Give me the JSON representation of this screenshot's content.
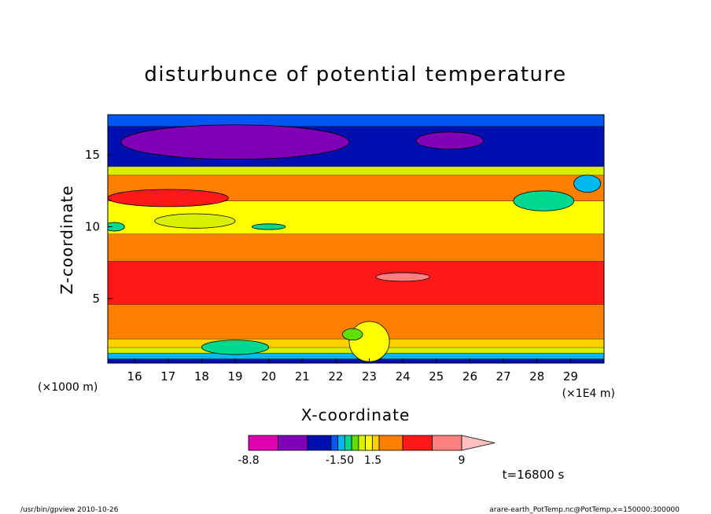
{
  "chart_data": {
    "type": "heatmap",
    "title": "disturbunce of potential temperature",
    "xlabel": "X-coordinate",
    "ylabel": "Z-coordinate",
    "x_unit_left": "(×1000 m)",
    "x_unit_right": "(×1E4 m)",
    "xlim": [
      15.2,
      30.0
    ],
    "ylim": [
      0.5,
      17.8
    ],
    "x_ticks": [
      16,
      17,
      18,
      19,
      20,
      21,
      22,
      23,
      24,
      25,
      26,
      27,
      28,
      29
    ],
    "y_ticks": [
      5,
      10,
      15
    ],
    "time_label": "t=16800 s",
    "colorbar": {
      "labels": [
        "-8.8",
        "-1.50",
        "1.5",
        "9"
      ],
      "colors": [
        "#e000b0",
        "#8000b8",
        "#0010b0",
        "#0058f0",
        "#00b8f0",
        "#00d890",
        "#60e000",
        "#d8f000",
        "#ffff00",
        "#ffd000",
        "#ff8000",
        "#ff1818",
        "#ff8080",
        "#ffc0c0"
      ]
    },
    "bands": [
      {
        "z": [
          0.5,
          0.8
        ],
        "color": "#0010b0"
      },
      {
        "z": [
          0.8,
          1.2
        ],
        "color": "#00b8f0"
      },
      {
        "z": [
          1.2,
          1.6
        ],
        "color": "#d8f000"
      },
      {
        "z": [
          1.6,
          2.2
        ],
        "color": "#ffd000"
      },
      {
        "z": [
          2.2,
          4.6
        ],
        "color": "#ff8000"
      },
      {
        "z": [
          4.6,
          7.6
        ],
        "color": "#ff1818"
      },
      {
        "z": [
          7.6,
          9.5
        ],
        "color": "#ff8000"
      },
      {
        "z": [
          9.5,
          11.8
        ],
        "color": "#ffff00"
      },
      {
        "z": [
          11.8,
          13.6
        ],
        "color": "#ff8000"
      },
      {
        "z": [
          13.6,
          14.2
        ],
        "color": "#d8f000"
      },
      {
        "z": [
          14.2,
          17.0
        ],
        "color": "#0010b0"
      },
      {
        "z": [
          17.0,
          17.8
        ],
        "color": "#0058f0"
      }
    ],
    "blobs": [
      {
        "x": 19.0,
        "z": 15.9,
        "rx": 3.4,
        "rz": 1.2,
        "color": "#8000b8"
      },
      {
        "x": 25.4,
        "z": 16.0,
        "rx": 1.0,
        "rz": 0.6,
        "color": "#8000b8"
      },
      {
        "x": 17.0,
        "z": 12.0,
        "rx": 1.8,
        "rz": 0.6,
        "color": "#ff1818"
      },
      {
        "x": 24.0,
        "z": 6.5,
        "rx": 0.8,
        "rz": 0.3,
        "color": "#ff8080"
      },
      {
        "x": 15.4,
        "z": 10.0,
        "rx": 0.3,
        "rz": 0.3,
        "color": "#00d890"
      },
      {
        "x": 20.0,
        "z": 10.0,
        "rx": 0.5,
        "rz": 0.2,
        "color": "#00d890"
      },
      {
        "x": 28.2,
        "z": 11.8,
        "rx": 0.9,
        "rz": 0.7,
        "color": "#00d890"
      },
      {
        "x": 29.5,
        "z": 13.0,
        "rx": 0.4,
        "rz": 0.6,
        "color": "#00b8f0"
      },
      {
        "x": 17.8,
        "z": 10.4,
        "rx": 1.2,
        "rz": 0.5,
        "color": "#d8f000"
      },
      {
        "x": 23.0,
        "z": 2.0,
        "rx": 0.6,
        "rz": 1.4,
        "color": "#ffff00"
      },
      {
        "x": 22.5,
        "z": 2.5,
        "rx": 0.3,
        "rz": 0.4,
        "color": "#60e000"
      },
      {
        "x": 19.0,
        "z": 1.6,
        "rx": 1.0,
        "rz": 0.5,
        "color": "#00d890"
      }
    ]
  },
  "footer": {
    "left": "/usr/bin/gpview   2010-10-26",
    "right": "arare-earth_PotTemp.nc@PotTemp,x=150000:300000"
  }
}
